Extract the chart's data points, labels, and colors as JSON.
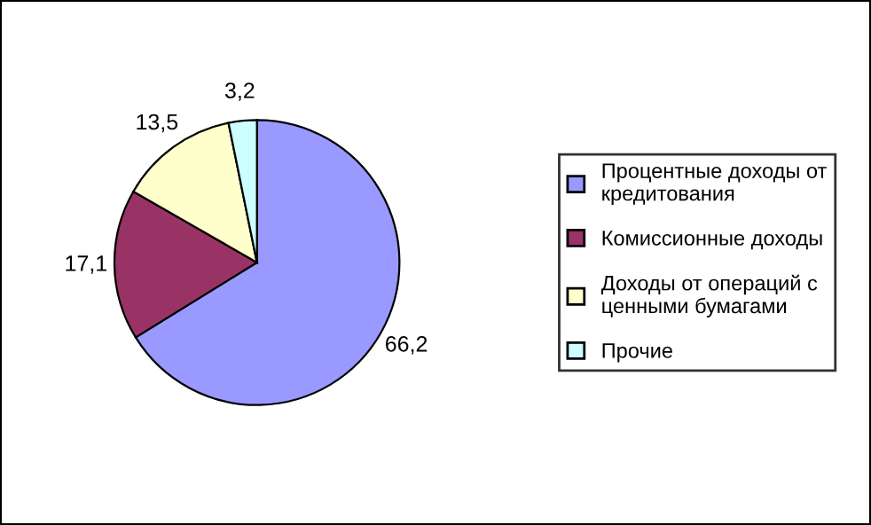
{
  "chart_data": {
    "type": "pie",
    "categories": [
      "Процентные доходы от кредитования",
      "Комиссионные доходы",
      "Доходы от операций с ценными бумагами",
      "Прочие"
    ],
    "values": [
      66.2,
      17.1,
      13.5,
      3.2
    ],
    "value_labels": [
      "66,2",
      "17,1",
      "13,5",
      "3,2"
    ],
    "colors": [
      "#9999ff",
      "#993366",
      "#ffffcc",
      "#ccffff"
    ],
    "legend": "right"
  }
}
